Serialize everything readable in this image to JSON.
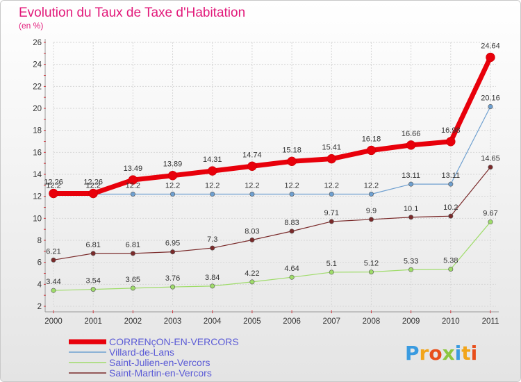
{
  "header": {
    "title": "Evolution du Taux de Taxe d'Habitation",
    "subtitle": "(en %)"
  },
  "brand": {
    "letters": [
      "P",
      "r",
      "o",
      "x",
      "i",
      "t",
      "i"
    ],
    "colors": [
      "#3a9be0",
      "#f2a51a",
      "#e84e1b",
      "#8cc63f",
      "#3a9be0",
      "#f2a51a",
      "#e84e1b"
    ]
  },
  "chart_data": {
    "type": "line",
    "title": "Evolution du Taux de Taxe d'Habitation",
    "ylabel": "(en %)",
    "xlabel": "",
    "x": [
      "2000",
      "2001",
      "2002",
      "2003",
      "2004",
      "2005",
      "2006",
      "2007",
      "2008",
      "2009",
      "2010",
      "2011"
    ],
    "ylim": [
      2,
      26
    ],
    "yticks": [
      2,
      4,
      6,
      8,
      10,
      12,
      14,
      16,
      18,
      20,
      22,
      24,
      26
    ],
    "grid": true,
    "legend": "bottom",
    "series": [
      {
        "name": "CORRENçON-EN-VERCORS",
        "color": "#e8000b",
        "values": [
          12.26,
          12.26,
          13.49,
          13.89,
          14.31,
          14.74,
          15.18,
          15.41,
          16.18,
          16.66,
          16.98,
          24.64
        ],
        "labels": [
          "12.26",
          "12.26",
          "13.49",
          "13.89",
          "14.31",
          "14.74",
          "15.18",
          "15.41",
          "16.18",
          "16.66",
          "16.98",
          "24.64"
        ]
      },
      {
        "name": "Villard-de-Lans",
        "color": "#6fa0d0",
        "values": [
          12.2,
          12.2,
          12.2,
          12.2,
          12.2,
          12.2,
          12.2,
          12.2,
          12.2,
          13.11,
          13.11,
          20.16
        ],
        "labels": [
          "12.2",
          "12.2",
          "12.2",
          "12.2",
          "12.2",
          "12.2",
          "12.2",
          "12.2",
          "12.2",
          "13.11",
          "13.11",
          "20.16"
        ]
      },
      {
        "name": "Saint-Julien-en-Vercors",
        "color": "#9fdc6a",
        "values": [
          3.44,
          3.54,
          3.65,
          3.76,
          3.84,
          4.22,
          4.64,
          5.1,
          5.12,
          5.33,
          5.38,
          9.67
        ],
        "labels": [
          "3.44",
          "3.54",
          "3.65",
          "3.76",
          "3.84",
          "4.22",
          "4.64",
          "5.1",
          "5.12",
          "5.33",
          "5.38",
          "9.67"
        ]
      },
      {
        "name": "Saint-Martin-en-Vercors",
        "color": "#7a2a2a",
        "values": [
          6.21,
          6.81,
          6.81,
          6.95,
          7.3,
          8.03,
          8.83,
          9.71,
          9.9,
          10.1,
          10.2,
          14.65
        ],
        "labels": [
          "6.21",
          "6.81",
          "6.81",
          "6.95",
          "7.3",
          "8.03",
          "8.83",
          "9.71",
          "9.9",
          "10.1",
          "10.2",
          "14.65"
        ]
      }
    ]
  }
}
